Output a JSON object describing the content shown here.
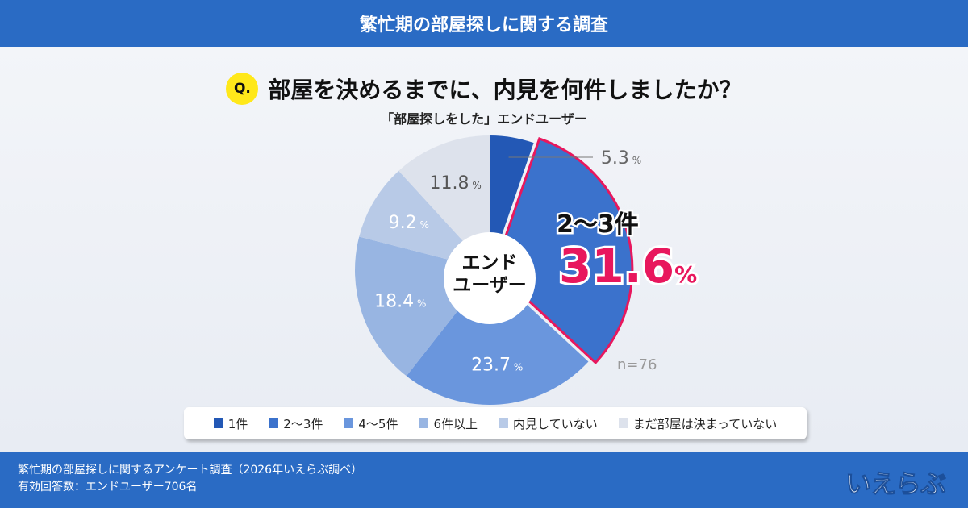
{
  "header": {
    "title": "繁忙期の部屋探しに関する調査"
  },
  "question": {
    "badge": "Q.",
    "text": "部屋を決めるまでに、内見を何件しましたか？",
    "subtitle": "「部屋探しをした」エンドユーザー"
  },
  "chart_data": {
    "type": "pie",
    "center_label": [
      "エンド",
      "ユーザー"
    ],
    "n_label": "n=76",
    "unit": "%",
    "start": "top",
    "direction": "clockwise",
    "highlight": {
      "category": "2〜3件",
      "label": "2〜3件",
      "value_label": "31.6",
      "color": "#e8175d"
    },
    "categories": [
      "1件",
      "2〜3件",
      "4〜5件",
      "6件以上",
      "内見していない",
      "まだ部屋は決まっていない"
    ],
    "values": [
      5.3,
      31.6,
      23.7,
      18.4,
      9.2,
      11.8
    ],
    "colors": [
      "#2358b5",
      "#3b72cc",
      "#6a96dd",
      "#98b5e2",
      "#b8cae7",
      "#dde2ec"
    ],
    "label_colors": [
      "#666",
      "#fff",
      "#fff",
      "#fff",
      "#fff",
      "#555"
    ],
    "legend_position": "bottom"
  },
  "footer": {
    "line1": "繁忙期の部屋探しに関するアンケート調査（2026年いえらぶ調べ）",
    "line2": "有効回答数：エンドユーザー706名",
    "logo": "いえらぶ"
  }
}
